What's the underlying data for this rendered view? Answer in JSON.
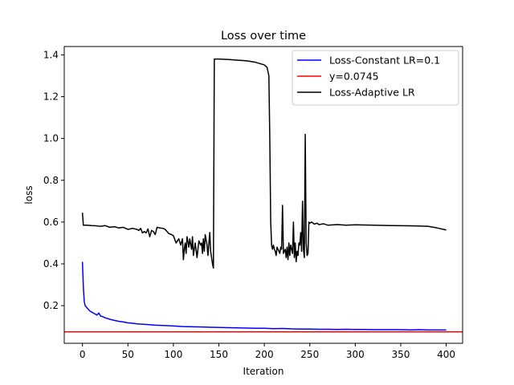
{
  "chart_data": {
    "type": "line",
    "title": "Loss over time",
    "xlabel": "Iteration",
    "ylabel": "loss",
    "xlim": [
      -20,
      418
    ],
    "ylim": [
      0.02,
      1.44
    ],
    "xticks": [
      0,
      50,
      100,
      150,
      200,
      250,
      300,
      350,
      400
    ],
    "yticks": [
      0.2,
      0.4,
      0.6,
      0.8,
      1.0,
      1.2,
      1.4
    ],
    "ytick_labels": [
      "0.2",
      "0.4",
      "0.6",
      "0.8",
      "1.0",
      "1.2",
      "1.4"
    ],
    "grid": false,
    "legend_position": "top-right",
    "series": [
      {
        "name": "Loss-Constant LR=0.1",
        "color": "#0000ff",
        "x": [
          0,
          1,
          2,
          3,
          4,
          5,
          6,
          7,
          8,
          10,
          12,
          14,
          16,
          18,
          20,
          22,
          25,
          28,
          30,
          35,
          40,
          45,
          50,
          55,
          60,
          70,
          80,
          90,
          100,
          110,
          120,
          130,
          140,
          150,
          160,
          170,
          180,
          190,
          200,
          210,
          220,
          230,
          240,
          250,
          260,
          270,
          280,
          290,
          300,
          310,
          320,
          330,
          340,
          350,
          360,
          370,
          380,
          390,
          400
        ],
        "y": [
          0.41,
          0.29,
          0.22,
          0.2,
          0.195,
          0.19,
          0.185,
          0.18,
          0.175,
          0.17,
          0.165,
          0.16,
          0.155,
          0.165,
          0.15,
          0.148,
          0.142,
          0.138,
          0.135,
          0.13,
          0.125,
          0.122,
          0.118,
          0.116,
          0.113,
          0.11,
          0.107,
          0.105,
          0.103,
          0.1,
          0.099,
          0.098,
          0.097,
          0.096,
          0.095,
          0.094,
          0.093,
          0.092,
          0.092,
          0.09,
          0.091,
          0.089,
          0.088,
          0.088,
          0.087,
          0.087,
          0.086,
          0.087,
          0.086,
          0.086,
          0.085,
          0.085,
          0.085,
          0.085,
          0.084,
          0.085,
          0.084,
          0.084,
          0.084
        ]
      },
      {
        "name": "y=0.0745",
        "color": "#ff0000",
        "hline": 0.0745
      },
      {
        "name": "Loss-Adaptive LR",
        "color": "#000000",
        "x": [
          0,
          1,
          5,
          10,
          15,
          20,
          25,
          30,
          35,
          40,
          45,
          50,
          55,
          60,
          62,
          64,
          66,
          68,
          70,
          72,
          74,
          76,
          78,
          80,
          82,
          85,
          88,
          90,
          92,
          95,
          98,
          100,
          103,
          106,
          108,
          110,
          111,
          112,
          113,
          114,
          115,
          117,
          118,
          120,
          121,
          122,
          124,
          126,
          128,
          130,
          131,
          132,
          133,
          134,
          135,
          137,
          138,
          140,
          141,
          142,
          143,
          144,
          145,
          150,
          160,
          170,
          180,
          190,
          200,
          203,
          205,
          206,
          207,
          208,
          209,
          210,
          211,
          212,
          213,
          214,
          215,
          216,
          217,
          218,
          219,
          220,
          221,
          222,
          223,
          224,
          225,
          226,
          227,
          228,
          229,
          230,
          231,
          232,
          233,
          234,
          235,
          236,
          237,
          238,
          239,
          240,
          241,
          242,
          243,
          244,
          245,
          246,
          247,
          248,
          249,
          250,
          252,
          255,
          258,
          260,
          265,
          270,
          280,
          290,
          300,
          320,
          340,
          360,
          380,
          390,
          400
        ],
        "y": [
          0.645,
          0.585,
          0.585,
          0.583,
          0.582,
          0.58,
          0.583,
          0.575,
          0.578,
          0.572,
          0.575,
          0.565,
          0.57,
          0.565,
          0.56,
          0.57,
          0.548,
          0.555,
          0.548,
          0.567,
          0.53,
          0.56,
          0.555,
          0.54,
          0.575,
          0.572,
          0.57,
          0.568,
          0.56,
          0.545,
          0.54,
          0.535,
          0.5,
          0.52,
          0.49,
          0.52,
          0.42,
          0.47,
          0.5,
          0.45,
          0.53,
          0.48,
          0.52,
          0.47,
          0.53,
          0.44,
          0.5,
          0.43,
          0.51,
          0.49,
          0.5,
          0.45,
          0.52,
          0.46,
          0.54,
          0.49,
          0.44,
          0.55,
          0.46,
          0.43,
          0.4,
          0.38,
          1.38,
          1.38,
          1.378,
          1.375,
          1.372,
          1.365,
          1.352,
          1.34,
          1.3,
          1.0,
          0.6,
          0.49,
          0.47,
          0.49,
          0.47,
          0.46,
          0.44,
          0.48,
          0.47,
          0.46,
          0.45,
          0.48,
          0.47,
          0.68,
          0.45,
          0.46,
          0.47,
          0.43,
          0.48,
          0.42,
          0.5,
          0.44,
          0.49,
          0.47,
          0.45,
          0.6,
          0.43,
          0.5,
          0.41,
          0.46,
          0.44,
          0.5,
          0.49,
          0.55,
          0.46,
          0.7,
          0.47,
          0.43,
          1.02,
          0.5,
          0.44,
          0.45,
          0.6,
          0.595,
          0.6,
          0.59,
          0.595,
          0.588,
          0.592,
          0.585,
          0.588,
          0.585,
          0.587,
          0.585,
          0.583,
          0.582,
          0.58,
          0.572,
          0.562
        ]
      }
    ]
  }
}
